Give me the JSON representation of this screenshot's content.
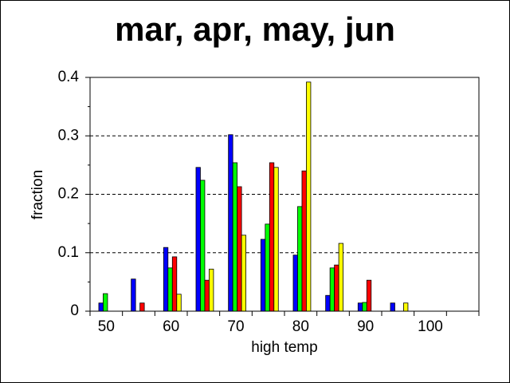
{
  "chart_data": {
    "type": "bar",
    "title": "mar, apr, may, jun",
    "xlabel": "high temp",
    "ylabel": "fraction",
    "x": [
      50,
      55,
      60,
      65,
      70,
      75,
      80,
      85,
      90,
      95,
      100,
      105
    ],
    "series": [
      {
        "color": "#0000ff",
        "values": [
          0.014,
          0.055,
          0.109,
          0.246,
          0.302,
          0.123,
          0.096,
          0.027,
          0.014,
          0.014,
          0,
          0
        ]
      },
      {
        "color": "#00ff00",
        "values": [
          0.03,
          0,
          0.074,
          0.224,
          0.254,
          0.149,
          0.179,
          0.074,
          0.015,
          0,
          0,
          0
        ]
      },
      {
        "color": "#ff0000",
        "values": [
          0,
          0.014,
          0.093,
          0.053,
          0.213,
          0.254,
          0.24,
          0.079,
          0.053,
          0,
          0,
          0
        ]
      },
      {
        "color": "#ffff00",
        "values": [
          0,
          0,
          0.029,
          0.072,
          0.13,
          0.246,
          0.392,
          0.116,
          0,
          0.014,
          0,
          0
        ]
      }
    ],
    "xlim": [
      47.5,
      107.5
    ],
    "xticks": [
      50,
      60,
      70,
      80,
      90,
      100
    ],
    "ylim": [
      0,
      0.4
    ],
    "yticks": [
      0,
      0.1,
      0.2,
      0.3,
      0.4
    ],
    "grid": true
  }
}
